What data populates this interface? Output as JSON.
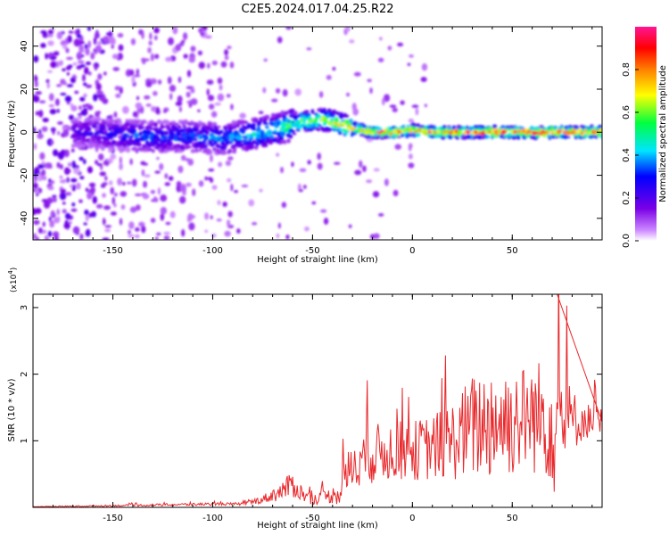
{
  "figure": {
    "title": "C2E5.2024.017.04.25.R22"
  },
  "chart_data": [
    {
      "type": "heatmap",
      "xlabel": "Height of straight line (km)",
      "ylabel": "Frequency (Hz)",
      "xlim": [
        -190,
        95
      ],
      "ylim": [
        -50,
        49
      ],
      "x_ticks": [
        -150,
        -100,
        -50,
        0,
        50
      ],
      "y_ticks": [
        -40,
        -20,
        0,
        20,
        40
      ],
      "colorbar": {
        "label": "Normalized spectral amplitude",
        "range": [
          0.0,
          1.0
        ],
        "ticks": [
          0.0,
          0.2,
          0.4,
          0.6,
          0.8
        ],
        "colormap": [
          "#ffffff",
          "#cc88ff",
          "#7a00e6",
          "#0000ff",
          "#00e5ff",
          "#00ff40",
          "#ffff00",
          "#ff8000",
          "#ff0000",
          "#ff1493"
        ]
      },
      "ridge": {
        "x": [
          -165,
          -150,
          -130,
          -110,
          -95,
          -80,
          -65,
          -55,
          -45,
          -40,
          -30,
          -20,
          -10,
          0,
          10,
          20,
          30,
          40,
          50,
          60,
          70,
          80,
          95
        ],
        "frequency": [
          0,
          -1,
          -2,
          -2,
          -3,
          -1,
          2,
          5,
          6,
          5,
          2,
          0,
          0,
          1,
          0,
          0,
          0,
          0,
          0,
          0,
          0,
          0,
          0
        ],
        "peak_amplitude": [
          0.25,
          0.3,
          0.35,
          0.35,
          0.38,
          0.45,
          0.55,
          0.6,
          0.65,
          0.7,
          0.8,
          0.85,
          0.88,
          0.9,
          0.92,
          0.92,
          0.94,
          0.95,
          0.95,
          0.96,
          0.97,
          0.97,
          0.97
        ]
      }
    },
    {
      "type": "line",
      "xlabel": "Height of straight line (km)",
      "ylabel": "SNR (10 * v/v)",
      "y_multiplier": "(x10^4)",
      "xlim": [
        -190,
        95
      ],
      "ylim": [
        0,
        3.2
      ],
      "x_ticks": [
        -150,
        -100,
        -50,
        0,
        50
      ],
      "y_ticks": [
        1,
        2,
        3
      ],
      "series": [
        {
          "color": "#e8282b",
          "x": [
            -190,
            -160,
            -140,
            -120,
            -100,
            -85,
            -75,
            -65,
            -60,
            -55,
            -50,
            -45,
            -40,
            -35,
            -30,
            -25,
            -20,
            -10,
            0,
            10,
            20,
            25,
            30,
            35,
            40,
            45,
            50,
            55,
            60,
            65,
            70,
            72,
            75,
            80,
            85,
            90,
            95
          ],
          "mean": [
            0.01,
            0.02,
            0.03,
            0.04,
            0.05,
            0.05,
            0.12,
            0.25,
            0.35,
            0.2,
            0.12,
            0.15,
            0.18,
            0.3,
            0.65,
            0.75,
            0.8,
            0.85,
            0.85,
            0.9,
            1.0,
            1.1,
            1.2,
            1.25,
            1.3,
            1.3,
            1.3,
            1.35,
            1.35,
            1.35,
            1.3,
            1.35,
            1.3,
            1.3,
            1.3,
            1.3,
            1.25
          ],
          "noise": [
            0.005,
            0.01,
            0.015,
            0.02,
            0.02,
            0.02,
            0.06,
            0.15,
            0.2,
            0.12,
            0.08,
            0.1,
            0.12,
            0.3,
            0.4,
            0.4,
            0.45,
            0.45,
            0.45,
            0.5,
            0.6,
            0.7,
            0.8,
            0.85,
            0.9,
            0.9,
            0.85,
            0.8,
            0.85,
            0.9,
            0.95,
            1.4,
            0.8,
            0.5,
            0.3,
            0.25,
            0.25
          ]
        }
      ]
    }
  ]
}
